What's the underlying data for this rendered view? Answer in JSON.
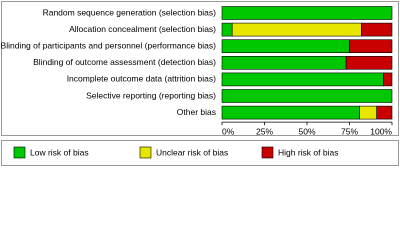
{
  "chart_data": {
    "type": "stacked-bar-horizontal",
    "categories": [
      "Random sequence generation (selection bias)",
      "Allocation concealment (selection bias)",
      "Blinding of participants and personnel (performance bias)",
      "Blinding of outcome assessment (detection bias)",
      "Incomplete outcome data (attrition bias)",
      "Selective reporting (reporting bias)",
      "Other bias"
    ],
    "series": [
      {
        "name": "Low risk of bias",
        "color": "#00c800",
        "values": [
          100,
          6,
          75,
          73,
          95,
          100,
          81
        ]
      },
      {
        "name": "Unclear risk of bias",
        "color": "#e6e600",
        "values": [
          0,
          76,
          0,
          0,
          0,
          0,
          10
        ]
      },
      {
        "name": "High risk of bias",
        "color": "#c80000",
        "values": [
          0,
          18,
          25,
          27,
          5,
          0,
          9
        ]
      }
    ],
    "xlim": [
      0,
      100
    ],
    "xticks": [
      {
        "value": 0,
        "label": "0%"
      },
      {
        "value": 25,
        "label": "25%"
      },
      {
        "value": 50,
        "label": "50%"
      },
      {
        "value": 75,
        "label": "75%"
      },
      {
        "value": 100,
        "label": "100%"
      }
    ]
  }
}
